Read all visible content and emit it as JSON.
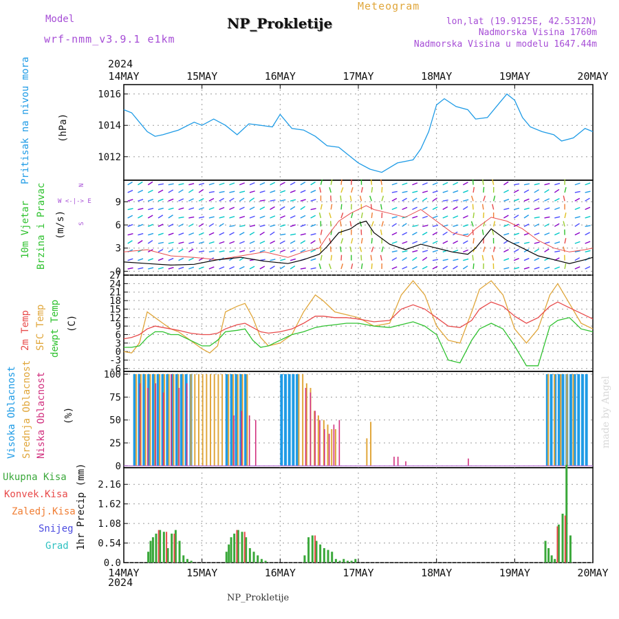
{
  "header": {
    "model_label": "Model",
    "model_value": "wrf-nmm_v3.9.1  e1km",
    "meteogram_label": "Meteogram",
    "station": "NP_Prokletije",
    "lonlat": "lon,lat (19.9125E, 42.5312N)",
    "elevation": "Nadmorska Visina 1760m",
    "model_elevation": "Nadmorska Visina u modelu 1647.44m",
    "year_top": "2024",
    "year_bottom": "2024",
    "footer_station": "NP_Prokletije",
    "watermark": "made by Angel"
  },
  "colors": {
    "pressure": "#1e9be6",
    "temp2m": "#e84a4a",
    "sfc": "#e0a63a",
    "dewpt": "#2ec12e",
    "high_cloud": "#1e9be6",
    "mid_cloud": "#e0a63a",
    "low_cloud": "#d12f7e",
    "total_precip": "#3aa83a",
    "conv_precip": "#e84a4a",
    "grid": "#999999",
    "purple": "#a64dd6"
  },
  "chart_data": [
    {
      "type": "line",
      "panel": "pressure",
      "ylabel_lines": [
        "Pritisak na nivou mora",
        "(hPa)"
      ],
      "x_dates": [
        "14MAY",
        "15MAY",
        "16MAY",
        "17MAY",
        "18MAY",
        "19MAY",
        "20MAY"
      ],
      "yticks": [
        1012,
        1014,
        1016
      ],
      "ylim": [
        1010.5,
        1016.6
      ],
      "series": [
        {
          "x": [
            0,
            0.1,
            0.2,
            0.3,
            0.4,
            0.5,
            0.7,
            0.9,
            1.0,
            1.15,
            1.3,
            1.45,
            1.6,
            1.75,
            1.9,
            2.0,
            2.15,
            2.3,
            2.45,
            2.6,
            2.75,
            2.85,
            3.0,
            3.15,
            3.3,
            3.5,
            3.7,
            3.8,
            3.9,
            4.0,
            4.1,
            4.25,
            4.4,
            4.5,
            4.65,
            4.8,
            4.9,
            5.0,
            5.1,
            5.2,
            5.35,
            5.5,
            5.6,
            5.75,
            5.9,
            6.0
          ],
          "y": [
            1015.0,
            1014.8,
            1014.2,
            1013.6,
            1013.3,
            1013.4,
            1013.7,
            1014.2,
            1014.0,
            1014.4,
            1014.0,
            1013.4,
            1014.1,
            1014.0,
            1013.9,
            1014.7,
            1013.8,
            1013.7,
            1013.3,
            1012.7,
            1012.6,
            1012.2,
            1011.6,
            1011.2,
            1011.0,
            1011.6,
            1011.8,
            1012.5,
            1013.6,
            1015.3,
            1015.7,
            1015.2,
            1015.0,
            1014.4,
            1014.5,
            1015.4,
            1016.0,
            1015.6,
            1014.5,
            1013.9,
            1013.6,
            1013.4,
            1013.0,
            1013.2,
            1013.8,
            1013.6
          ]
        }
      ]
    },
    {
      "type": "line",
      "panel": "wind",
      "ylabel_lines": [
        "10m Vjetar",
        "Brzina i Pravac",
        "(m/s)"
      ],
      "compass": [
        "N",
        "W <-|-> E",
        "S"
      ],
      "yticks": [
        0,
        3,
        6,
        9
      ],
      "ylim": [
        -0.5,
        11.8
      ],
      "series": [
        {
          "name": "speed",
          "x": [
            0,
            0.3,
            0.6,
            0.9,
            1.2,
            1.5,
            1.8,
            2.1,
            2.3,
            2.5,
            2.6,
            2.75,
            2.9,
            3.0,
            3.1,
            3.2,
            3.4,
            3.6,
            3.8,
            4.0,
            4.2,
            4.4,
            4.5,
            4.7,
            4.9,
            5.1,
            5.3,
            5.5,
            5.7,
            5.9,
            6.0
          ],
          "y": [
            1.2,
            1.0,
            0.8,
            0.9,
            1.5,
            1.8,
            1.3,
            1.0,
            1.5,
            2.2,
            3.2,
            5.0,
            5.5,
            6.2,
            6.5,
            5.0,
            3.5,
            2.8,
            3.5,
            3.0,
            2.5,
            2.2,
            3.0,
            5.5,
            4.0,
            3.0,
            2.0,
            1.5,
            1.0,
            1.5,
            1.8
          ]
        },
        {
          "name": "gust",
          "x": [
            0,
            0.3,
            0.6,
            0.9,
            1.2,
            1.5,
            1.8,
            2.1,
            2.3,
            2.5,
            2.6,
            2.75,
            2.9,
            3.0,
            3.1,
            3.2,
            3.4,
            3.6,
            3.8,
            4.0,
            4.2,
            4.4,
            4.5,
            4.7,
            4.9,
            5.1,
            5.3,
            5.5,
            5.7,
            5.9,
            6.0
          ],
          "y": [
            2.5,
            2.8,
            2.0,
            1.8,
            1.5,
            2.0,
            2.5,
            1.8,
            2.5,
            3.0,
            4.5,
            6.5,
            7.5,
            8.0,
            8.5,
            8.0,
            7.5,
            7.0,
            8.0,
            6.5,
            5.0,
            4.5,
            5.5,
            7.0,
            6.5,
            5.5,
            4.0,
            3.0,
            2.5,
            2.8,
            3.0
          ]
        }
      ]
    },
    {
      "type": "line",
      "panel": "temperature",
      "ylabel_lines": [
        "2m Temp",
        "SFC Temp",
        "dewpt Temp",
        "(C)"
      ],
      "yticks": [
        -6,
        -3,
        0,
        3,
        6,
        9,
        12,
        15,
        18,
        21,
        24,
        27
      ],
      "ylim": [
        -7,
        27
      ],
      "series": [
        {
          "name": "2m Temp",
          "x": [
            0,
            0.1,
            0.2,
            0.3,
            0.4,
            0.5,
            0.6,
            0.7,
            0.85,
            1.0,
            1.1,
            1.2,
            1.3,
            1.45,
            1.55,
            1.65,
            1.75,
            1.85,
            2.0,
            2.15,
            2.3,
            2.45,
            2.55,
            2.7,
            2.85,
            3.0,
            3.2,
            3.4,
            3.55,
            3.7,
            3.85,
            4.0,
            4.15,
            4.3,
            4.45,
            4.55,
            4.7,
            4.85,
            5.0,
            5.15,
            5.3,
            5.45,
            5.55,
            5.7,
            5.85,
            6.0
          ],
          "y": [
            4.5,
            5.0,
            6.0,
            8.0,
            9.0,
            8.5,
            8.0,
            7.5,
            6.5,
            6.0,
            6.0,
            6.5,
            8.0,
            9.5,
            10.0,
            8.5,
            7.0,
            6.5,
            7.0,
            8.0,
            10.0,
            12.5,
            12.5,
            12.0,
            12.0,
            11.5,
            10.5,
            11.0,
            15.0,
            16.5,
            15.0,
            12.0,
            9.0,
            8.5,
            11.0,
            15.0,
            17.5,
            16.0,
            12.5,
            10.0,
            12.0,
            16.0,
            17.5,
            15.5,
            13.5,
            11.5
          ]
        },
        {
          "name": "SFC Temp",
          "x": [
            0,
            0.1,
            0.2,
            0.3,
            0.4,
            0.5,
            0.6,
            0.7,
            0.85,
            1.0,
            1.1,
            1.2,
            1.3,
            1.45,
            1.55,
            1.65,
            1.75,
            1.85,
            2.0,
            2.15,
            2.3,
            2.45,
            2.55,
            2.7,
            2.85,
            3.0,
            3.2,
            3.4,
            3.55,
            3.7,
            3.85,
            4.0,
            4.15,
            4.3,
            4.45,
            4.55,
            4.7,
            4.85,
            5.0,
            5.15,
            5.3,
            5.45,
            5.55,
            5.7,
            5.85,
            6.0
          ],
          "y": [
            0.0,
            -0.5,
            3.0,
            14.0,
            12.0,
            10.0,
            8.0,
            7.0,
            4.0,
            1.0,
            -0.5,
            2.0,
            14.0,
            16.0,
            17.0,
            12.0,
            5.0,
            2.0,
            3.0,
            6.0,
            14.0,
            20.0,
            18.0,
            14.0,
            13.0,
            12.0,
            9.0,
            10.0,
            20.0,
            25.0,
            20.0,
            9.0,
            4.0,
            3.0,
            14.0,
            22.0,
            25.0,
            20.0,
            8.0,
            3.0,
            8.0,
            20.0,
            24.0,
            17.0,
            10.0,
            8.0
          ]
        },
        {
          "name": "dewpt Temp",
          "x": [
            0,
            0.1,
            0.2,
            0.3,
            0.4,
            0.5,
            0.6,
            0.7,
            0.85,
            1.0,
            1.1,
            1.2,
            1.3,
            1.45,
            1.55,
            1.65,
            1.75,
            1.85,
            2.0,
            2.15,
            2.3,
            2.45,
            2.55,
            2.7,
            2.85,
            3.0,
            3.2,
            3.4,
            3.55,
            3.7,
            3.85,
            4.0,
            4.15,
            4.3,
            4.45,
            4.55,
            4.7,
            4.85,
            5.0,
            5.15,
            5.3,
            5.45,
            5.55,
            5.7,
            5.85,
            6.0
          ],
          "y": [
            1.5,
            1.5,
            2.0,
            5.0,
            7.0,
            7.0,
            6.0,
            6.0,
            4.0,
            2.0,
            2.0,
            4.0,
            7.0,
            7.5,
            8.0,
            4.0,
            1.5,
            2.0,
            4.0,
            6.0,
            7.0,
            8.5,
            9.0,
            9.5,
            10.0,
            10.0,
            9.0,
            8.5,
            9.5,
            10.5,
            9.0,
            6.0,
            -3.0,
            -4.0,
            4.0,
            8.0,
            10.0,
            8.0,
            2.0,
            -5.0,
            -5.0,
            9.0,
            11.0,
            12.0,
            8.0,
            7.0
          ]
        }
      ]
    },
    {
      "type": "bar",
      "panel": "clouds",
      "ylabel_lines": [
        "Visoka Oblacnost",
        "Srednja Oblacnost",
        "Niska Oblacnost",
        "(%)"
      ],
      "yticks": [
        0,
        25,
        50,
        75,
        100
      ],
      "ylim": [
        -2,
        103
      ],
      "series": [
        {
          "name": "Visoka Oblacnost",
          "x": [
            0.12,
            0.18,
            0.24,
            0.3,
            0.36,
            0.42,
            0.48,
            0.54,
            0.6,
            0.66,
            0.72,
            0.78,
            0.84,
            1.3,
            1.36,
            1.42,
            1.48,
            1.54,
            2.0,
            2.05,
            2.1,
            2.15,
            2.2,
            5.4,
            5.45,
            5.5,
            5.55,
            5.6,
            5.65,
            5.7,
            5.75,
            5.8,
            5.85,
            5.9
          ],
          "y": [
            100,
            100,
            100,
            100,
            100,
            100,
            100,
            100,
            100,
            100,
            100,
            100,
            100,
            100,
            100,
            100,
            100,
            100,
            100,
            100,
            100,
            100,
            100,
            100,
            100,
            100,
            100,
            100,
            100,
            100,
            100,
            100,
            100,
            100
          ]
        },
        {
          "name": "Srednja Oblacnost",
          "x": [
            0.15,
            0.21,
            0.27,
            0.33,
            0.39,
            0.45,
            0.51,
            0.57,
            0.63,
            0.69,
            0.75,
            0.85,
            0.9,
            0.95,
            1.0,
            1.05,
            1.1,
            1.15,
            1.2,
            1.25,
            1.33,
            1.39,
            1.45,
            1.51,
            1.57,
            2.23,
            2.28,
            2.33,
            2.38,
            2.43,
            2.48,
            2.55,
            2.6,
            2.65,
            2.7,
            3.1,
            3.15,
            5.42,
            5.5,
            5.58,
            5.66,
            5.74
          ],
          "y": [
            100,
            100,
            100,
            100,
            100,
            100,
            100,
            100,
            100,
            100,
            100,
            100,
            100,
            100,
            100,
            100,
            100,
            100,
            100,
            100,
            100,
            100,
            100,
            100,
            100,
            100,
            100,
            90,
            85,
            60,
            55,
            50,
            45,
            40,
            40,
            30,
            48,
            100,
            100,
            100,
            100,
            100
          ]
        },
        {
          "name": "Niska Oblacnost",
          "x": [
            0.2,
            0.3,
            0.4,
            0.5,
            0.6,
            0.7,
            0.8,
            1.4,
            1.5,
            1.6,
            1.68,
            2.32,
            2.38,
            2.44,
            2.5,
            2.56,
            2.62,
            2.68,
            2.75,
            3.45,
            3.5,
            3.6,
            4.4
          ],
          "y": [
            90,
            85,
            90,
            80,
            100,
            85,
            90,
            55,
            60,
            55,
            50,
            85,
            80,
            60,
            50,
            40,
            35,
            45,
            50,
            10,
            10,
            5,
            8
          ]
        }
      ]
    },
    {
      "type": "bar",
      "panel": "precipitation",
      "ylabel_lines": [
        "1hr Precip (mm)"
      ],
      "legend": [
        "Ukupna Kisa",
        "Konvek.Kisa",
        "Zaledj.Kisa",
        "Snijeg",
        "Grad"
      ],
      "yticks": [
        0,
        0.54,
        1.08,
        1.62,
        2.16
      ],
      "ylim": [
        0,
        2.62
      ],
      "series": [
        {
          "name": "Ukupna Kisa",
          "x": [
            0.3,
            0.33,
            0.36,
            0.4,
            0.45,
            0.5,
            0.55,
            0.6,
            0.65,
            0.7,
            0.75,
            0.8,
            0.85,
            1.3,
            1.33,
            1.36,
            1.4,
            1.45,
            1.5,
            1.55,
            1.6,
            1.65,
            1.7,
            1.75,
            1.8,
            2.3,
            2.35,
            2.4,
            2.45,
            2.5,
            2.55,
            2.6,
            2.65,
            2.7,
            2.75,
            2.8,
            2.85,
            2.9,
            2.95,
            5.38,
            5.42,
            5.46,
            5.5,
            5.55,
            5.6,
            5.65,
            5.7,
            5.75
          ],
          "y": [
            0.3,
            0.6,
            0.7,
            0.8,
            0.9,
            0.85,
            0.4,
            0.8,
            0.9,
            0.6,
            0.2,
            0.1,
            0.05,
            0.3,
            0.5,
            0.7,
            0.8,
            0.9,
            0.85,
            0.7,
            0.4,
            0.3,
            0.2,
            0.1,
            0.05,
            0.2,
            0.7,
            0.75,
            0.6,
            0.5,
            0.4,
            0.35,
            0.3,
            0.1,
            0.05,
            0.1,
            0.05,
            0.05,
            0.1,
            0.6,
            0.4,
            0.2,
            0.1,
            1.05,
            1.35,
            2.7,
            0.75,
            0.0
          ]
        },
        {
          "name": "Konvek.Kisa",
          "x": [
            0.42,
            0.52,
            0.62,
            1.42,
            1.52,
            2.42,
            5.52,
            5.62
          ],
          "y": [
            0.9,
            0.85,
            0.8,
            0.9,
            0.85,
            0.75,
            1.0,
            1.3
          ]
        }
      ]
    }
  ]
}
